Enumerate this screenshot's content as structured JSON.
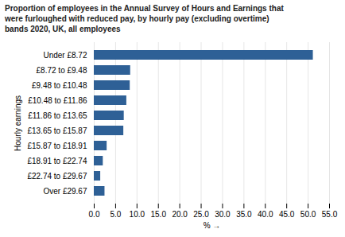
{
  "chart_data": {
    "type": "bar",
    "orientation": "horizontal",
    "title": "Proportion of employees in the Annual Survey of Hours and Earnings that\nwere furloughed with reduced pay, by hourly pay (excluding overtime)\nbands 2020, UK, all employees",
    "categories": [
      "Under £8.72",
      "£8.72 to £9.48",
      "£9.48 to £10.48",
      "£10.48 to £11.86",
      "£11.86 to £13.65",
      "£13.65 to £15.87",
      "£15.87 to £18.91",
      "£18.91 to £22.74",
      "£22.74 to £29.67",
      "Over £29.67"
    ],
    "values": [
      51.2,
      8.5,
      8.4,
      7.6,
      7.0,
      6.9,
      3.0,
      2.1,
      1.5,
      2.5
    ],
    "color": "#2e6096",
    "xlabel": "%",
    "ylabel": "Hourly earnings",
    "xlim": [
      0,
      55
    ],
    "xticks": [
      {
        "value": 0,
        "label": "0.0"
      },
      {
        "value": 5,
        "label": "5.0"
      },
      {
        "value": 10,
        "label": "10.0"
      },
      {
        "value": 15,
        "label": "15.0"
      },
      {
        "value": 20,
        "label": "20.0"
      },
      {
        "value": 25,
        "label": "25.0"
      },
      {
        "value": 30,
        "label": "30.0"
      },
      {
        "value": 35,
        "label": "35.0"
      },
      {
        "value": 40,
        "label": "40.0"
      },
      {
        "value": 45,
        "label": "45.0"
      },
      {
        "value": 50,
        "label": "50.0"
      },
      {
        "value": 55,
        "label": "55.0"
      }
    ],
    "grid": true
  }
}
